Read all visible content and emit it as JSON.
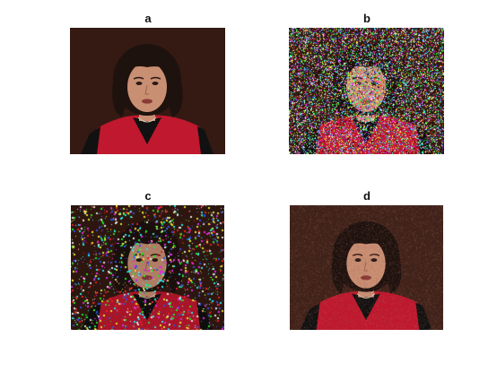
{
  "figure": {
    "panels": [
      {
        "id": "a",
        "title": "a",
        "noise": "none"
      },
      {
        "id": "b",
        "title": "b",
        "noise": "heavy-salt-pepper"
      },
      {
        "id": "c",
        "title": "c",
        "noise": "sparse-impulse"
      },
      {
        "id": "d",
        "title": "d",
        "noise": "mild-gaussian"
      }
    ]
  },
  "colors": {
    "background": "#ffffff",
    "studio_backdrop": "#3a1e14",
    "hair": "#1e120e",
    "skin": "#c98f73",
    "jacket": "#c0182e",
    "shirt": "#111111"
  },
  "photo_subject": "woman-portrait"
}
